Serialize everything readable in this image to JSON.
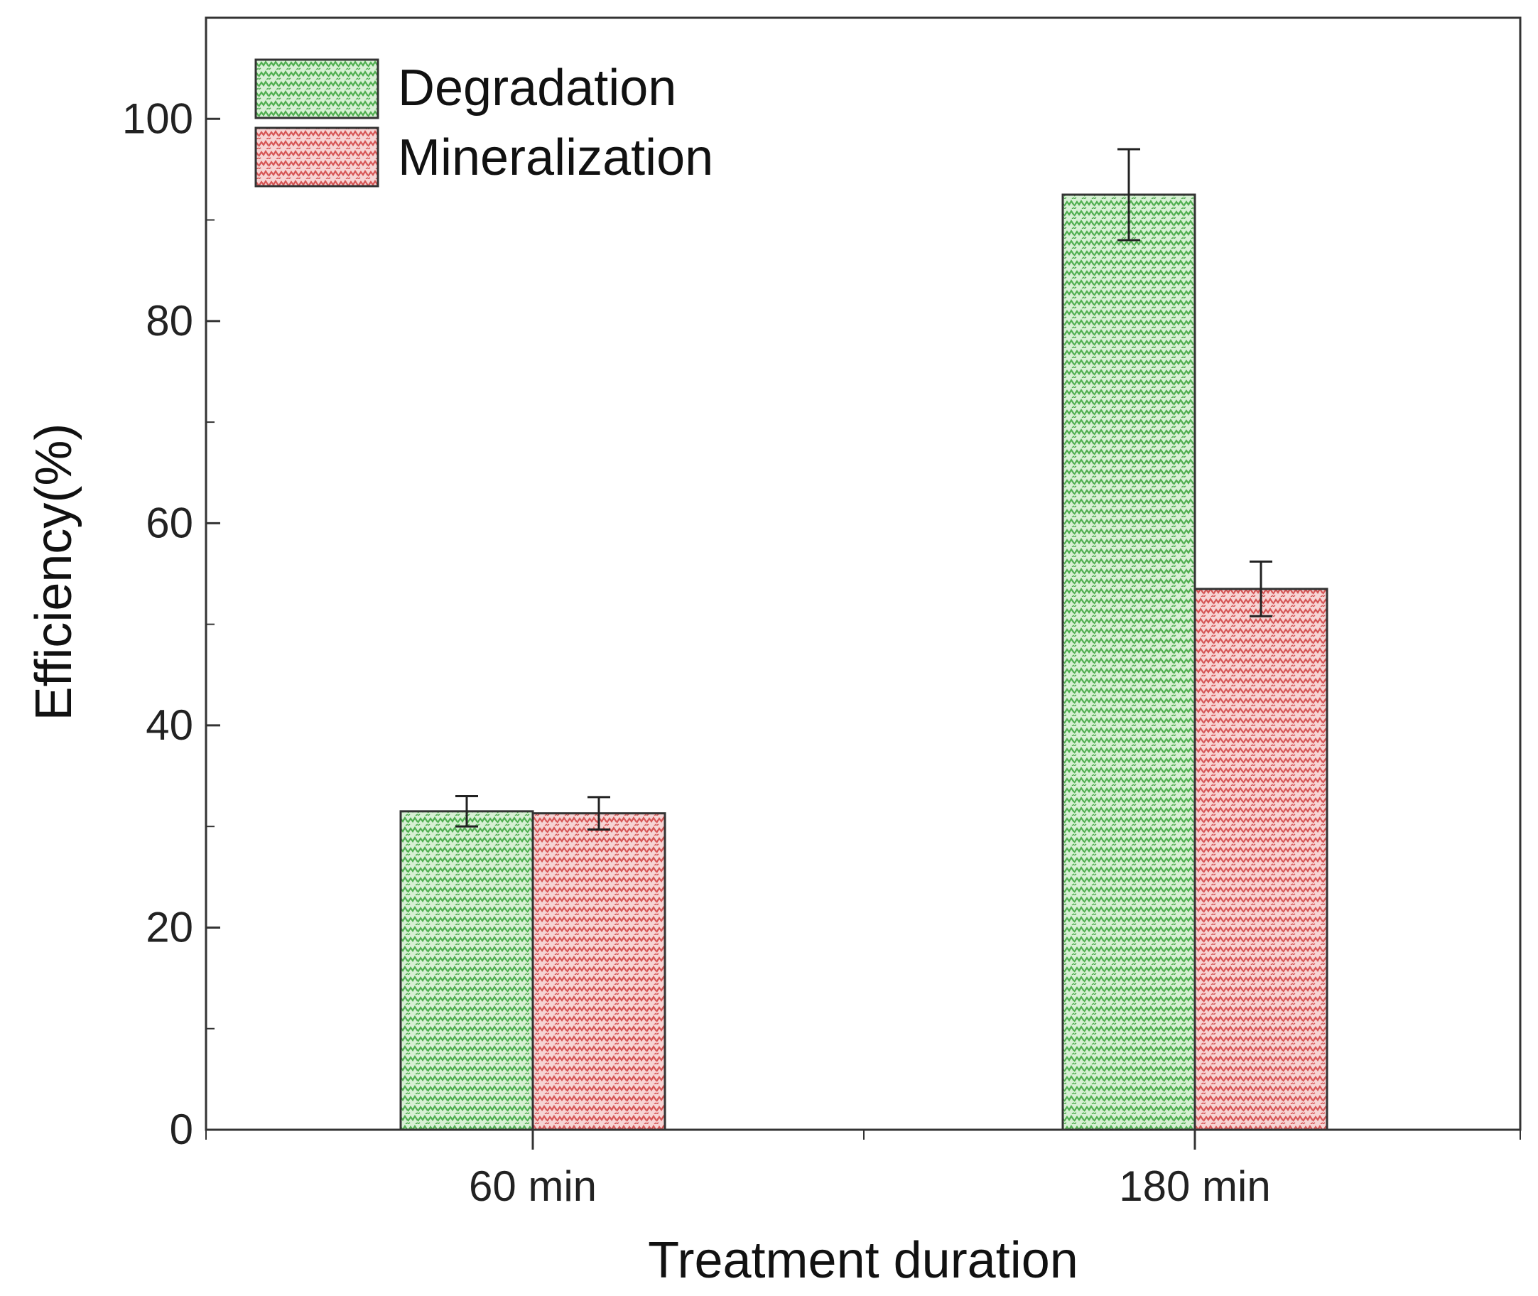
{
  "chart_data": {
    "type": "bar",
    "title": "",
    "xlabel": "Treatment duration",
    "ylabel": "Efficiency(%)",
    "categories": [
      "60 min",
      "180 min"
    ],
    "series": [
      {
        "name": "Degradation",
        "color": "#5bbf5b",
        "values": [
          31.5,
          92.5
        ],
        "errors": [
          1.5,
          4.5
        ]
      },
      {
        "name": "Mineralization",
        "color": "#e06666",
        "values": [
          31.3,
          53.5
        ],
        "errors": [
          1.6,
          2.7
        ]
      }
    ],
    "ylim": [
      0,
      110
    ],
    "yticks": [
      "0",
      "20",
      "40",
      "60",
      "80",
      "100"
    ],
    "ytick_values": [
      0,
      20,
      40,
      60,
      80,
      100
    ],
    "grid": false,
    "legend_position": "top-left"
  }
}
